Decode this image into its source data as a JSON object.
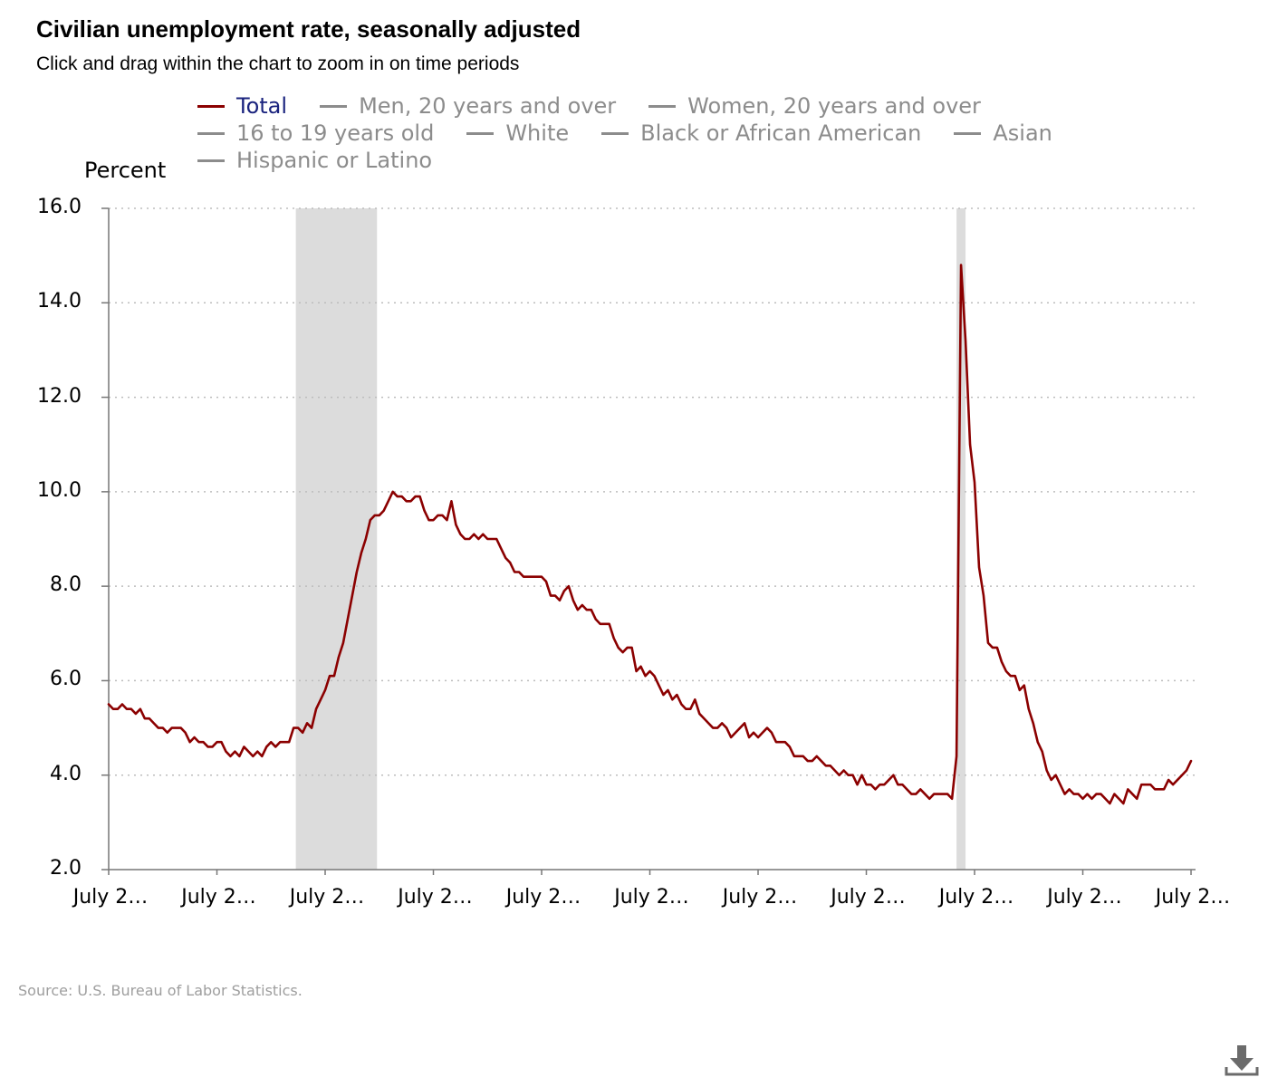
{
  "header": {
    "title": "Civilian unemployment rate, seasonally adjusted",
    "subtitle": "Click and drag within the chart to zoom in on time periods"
  },
  "legend": {
    "rows": [
      [
        {
          "label": "Total",
          "color": "#8b0000",
          "active": true
        },
        {
          "label": "Men, 20 years and over",
          "color": "#8c8c8c",
          "active": false
        },
        {
          "label": "Women, 20 years and over",
          "color": "#8c8c8c",
          "active": false
        }
      ],
      [
        {
          "label": "16 to 19 years old",
          "color": "#8c8c8c",
          "active": false
        },
        {
          "label": "White",
          "color": "#8c8c8c",
          "active": false
        },
        {
          "label": "Black or African American",
          "color": "#8c8c8c",
          "active": false
        },
        {
          "label": "Asian",
          "color": "#8c8c8c",
          "active": false
        }
      ],
      [
        {
          "label": "Hispanic or Latino",
          "color": "#8c8c8c",
          "active": false
        }
      ]
    ]
  },
  "source": "Source: U.S. Bureau of Labor Statistics.",
  "icons": {
    "download": "download-icon"
  },
  "chart_data": {
    "type": "line",
    "title": "Civilian unemployment rate, seasonally adjusted",
    "ylabel": "Percent",
    "xlabel": "",
    "ylim": [
      2.0,
      16.0
    ],
    "yticks": [
      "2.0",
      "4.0",
      "6.0",
      "8.0",
      "10.0",
      "12.0",
      "14.0",
      "16.0"
    ],
    "xticks": [
      "July 2…",
      "July 2…",
      "July 2…",
      "July 2…",
      "July 2…",
      "July 2…",
      "July 2…",
      "July 2…",
      "July 2…",
      "July 2…",
      "July 2…"
    ],
    "xlim_months": [
      0,
      241
    ],
    "grid": "horizontal dotted",
    "series_color": "#8b0000",
    "shaded_periods": [
      {
        "start": 41.5,
        "end": 59.5
      },
      {
        "start": 188,
        "end": 190
      }
    ],
    "series": [
      {
        "name": "Total",
        "values": [
          5.5,
          5.4,
          5.4,
          5.5,
          5.4,
          5.4,
          5.3,
          5.4,
          5.2,
          5.2,
          5.1,
          5.0,
          5.0,
          4.9,
          5.0,
          5.0,
          5.0,
          4.9,
          4.7,
          4.8,
          4.7,
          4.7,
          4.6,
          4.6,
          4.7,
          4.7,
          4.5,
          4.4,
          4.5,
          4.4,
          4.6,
          4.5,
          4.4,
          4.5,
          4.4,
          4.6,
          4.7,
          4.6,
          4.7,
          4.7,
          4.7,
          5.0,
          5.0,
          4.9,
          5.1,
          5.0,
          5.4,
          5.6,
          5.8,
          6.1,
          6.1,
          6.5,
          6.8,
          7.3,
          7.8,
          8.3,
          8.7,
          9.0,
          9.4,
          9.5,
          9.5,
          9.6,
          9.8,
          10.0,
          9.9,
          9.9,
          9.8,
          9.8,
          9.9,
          9.9,
          9.6,
          9.4,
          9.4,
          9.5,
          9.5,
          9.4,
          9.8,
          9.3,
          9.1,
          9.0,
          9.0,
          9.1,
          9.0,
          9.1,
          9.0,
          9.0,
          9.0,
          8.8,
          8.6,
          8.5,
          8.3,
          8.3,
          8.2,
          8.2,
          8.2,
          8.2,
          8.2,
          8.1,
          7.8,
          7.8,
          7.7,
          7.9,
          8.0,
          7.7,
          7.5,
          7.6,
          7.5,
          7.5,
          7.3,
          7.2,
          7.2,
          7.2,
          6.9,
          6.7,
          6.6,
          6.7,
          6.7,
          6.2,
          6.3,
          6.1,
          6.2,
          6.1,
          5.9,
          5.7,
          5.8,
          5.6,
          5.7,
          5.5,
          5.4,
          5.4,
          5.6,
          5.3,
          5.2,
          5.1,
          5.0,
          5.0,
          5.1,
          5.0,
          4.8,
          4.9,
          5.0,
          5.1,
          4.8,
          4.9,
          4.8,
          4.9,
          5.0,
          4.9,
          4.7,
          4.7,
          4.7,
          4.6,
          4.4,
          4.4,
          4.4,
          4.3,
          4.3,
          4.4,
          4.3,
          4.2,
          4.2,
          4.1,
          4.0,
          4.1,
          4.0,
          4.0,
          3.8,
          4.0,
          3.8,
          3.8,
          3.7,
          3.8,
          3.8,
          3.9,
          4.0,
          3.8,
          3.8,
          3.7,
          3.6,
          3.6,
          3.7,
          3.6,
          3.5,
          3.6,
          3.6,
          3.6,
          3.6,
          3.5,
          4.4,
          14.8,
          13.2,
          11.0,
          10.2,
          8.4,
          7.8,
          6.8,
          6.7,
          6.7,
          6.4,
          6.2,
          6.1,
          6.1,
          5.8,
          5.9,
          5.4,
          5.1,
          4.7,
          4.5,
          4.1,
          3.9,
          4.0,
          3.8,
          3.6,
          3.7,
          3.6,
          3.6,
          3.5,
          3.6,
          3.5,
          3.6,
          3.6,
          3.5,
          3.4,
          3.6,
          3.5,
          3.4,
          3.7,
          3.6,
          3.5,
          3.8,
          3.8,
          3.8,
          3.7,
          3.7,
          3.7,
          3.9,
          3.8,
          3.9,
          4.0,
          4.1,
          4.3
        ]
      }
    ]
  }
}
